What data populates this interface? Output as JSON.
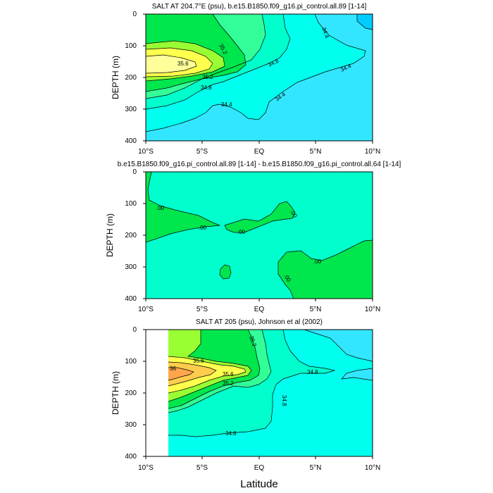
{
  "figure": {
    "xlabel": "Latitude"
  },
  "chart_data": [
    {
      "type": "heatmap",
      "title": "SALT AT 204.7°E (psu), b.e15.B1850.f09_g16.pi_control.all.89 [1-14]",
      "ylabel": "DEPTH (m)",
      "xlabel": "",
      "x_ticks": [
        "10°S",
        "5°S",
        "EQ",
        "5°N",
        "10°N"
      ],
      "y_ticks": [
        "0",
        "100",
        "200",
        "300",
        "400"
      ],
      "xlim": [
        -10,
        10
      ],
      "ylim": [
        400,
        0
      ],
      "contour_labels": [
        "35.2",
        "35.6",
        "35.2",
        "34.8",
        "34.8",
        "34.4",
        "34.4",
        "34.4",
        "34.4"
      ]
    },
    {
      "type": "heatmap",
      "title": "b.e15.B1850.f09_g16.pi_control.all.89 [1-14] - b.e15.B1850.f09_g16.pi_control.all.64 [1-14]",
      "ylabel": "DEPTH (m)",
      "xlabel": "",
      "x_ticks": [
        "10°S",
        "5°S",
        "EQ",
        "5°N",
        "10°N"
      ],
      "y_ticks": [
        "0",
        "100",
        "200",
        "300",
        "400"
      ],
      "xlim": [
        -10,
        10
      ],
      "ylim": [
        400,
        0
      ],
      "contour_labels": [
        ".00",
        ".00",
        ".00",
        ".00",
        ".00",
        ".00"
      ]
    },
    {
      "type": "heatmap",
      "title": "SALT AT 205 (psu), Johnson et al (2002)",
      "ylabel": "DEPTH (m)",
      "xlabel": "",
      "x_ticks": [
        "10°S",
        "5°S",
        "EQ",
        "5°N",
        "10°N"
      ],
      "y_ticks": [
        "0",
        "100",
        "200",
        "300",
        "400"
      ],
      "xlim": [
        -10,
        10
      ],
      "ylim": [
        400,
        0
      ],
      "contour_labels": [
        "35.2",
        "35.6",
        "36",
        "35.6",
        "35.2",
        "34.8",
        "34.8",
        "34.8"
      ]
    }
  ]
}
